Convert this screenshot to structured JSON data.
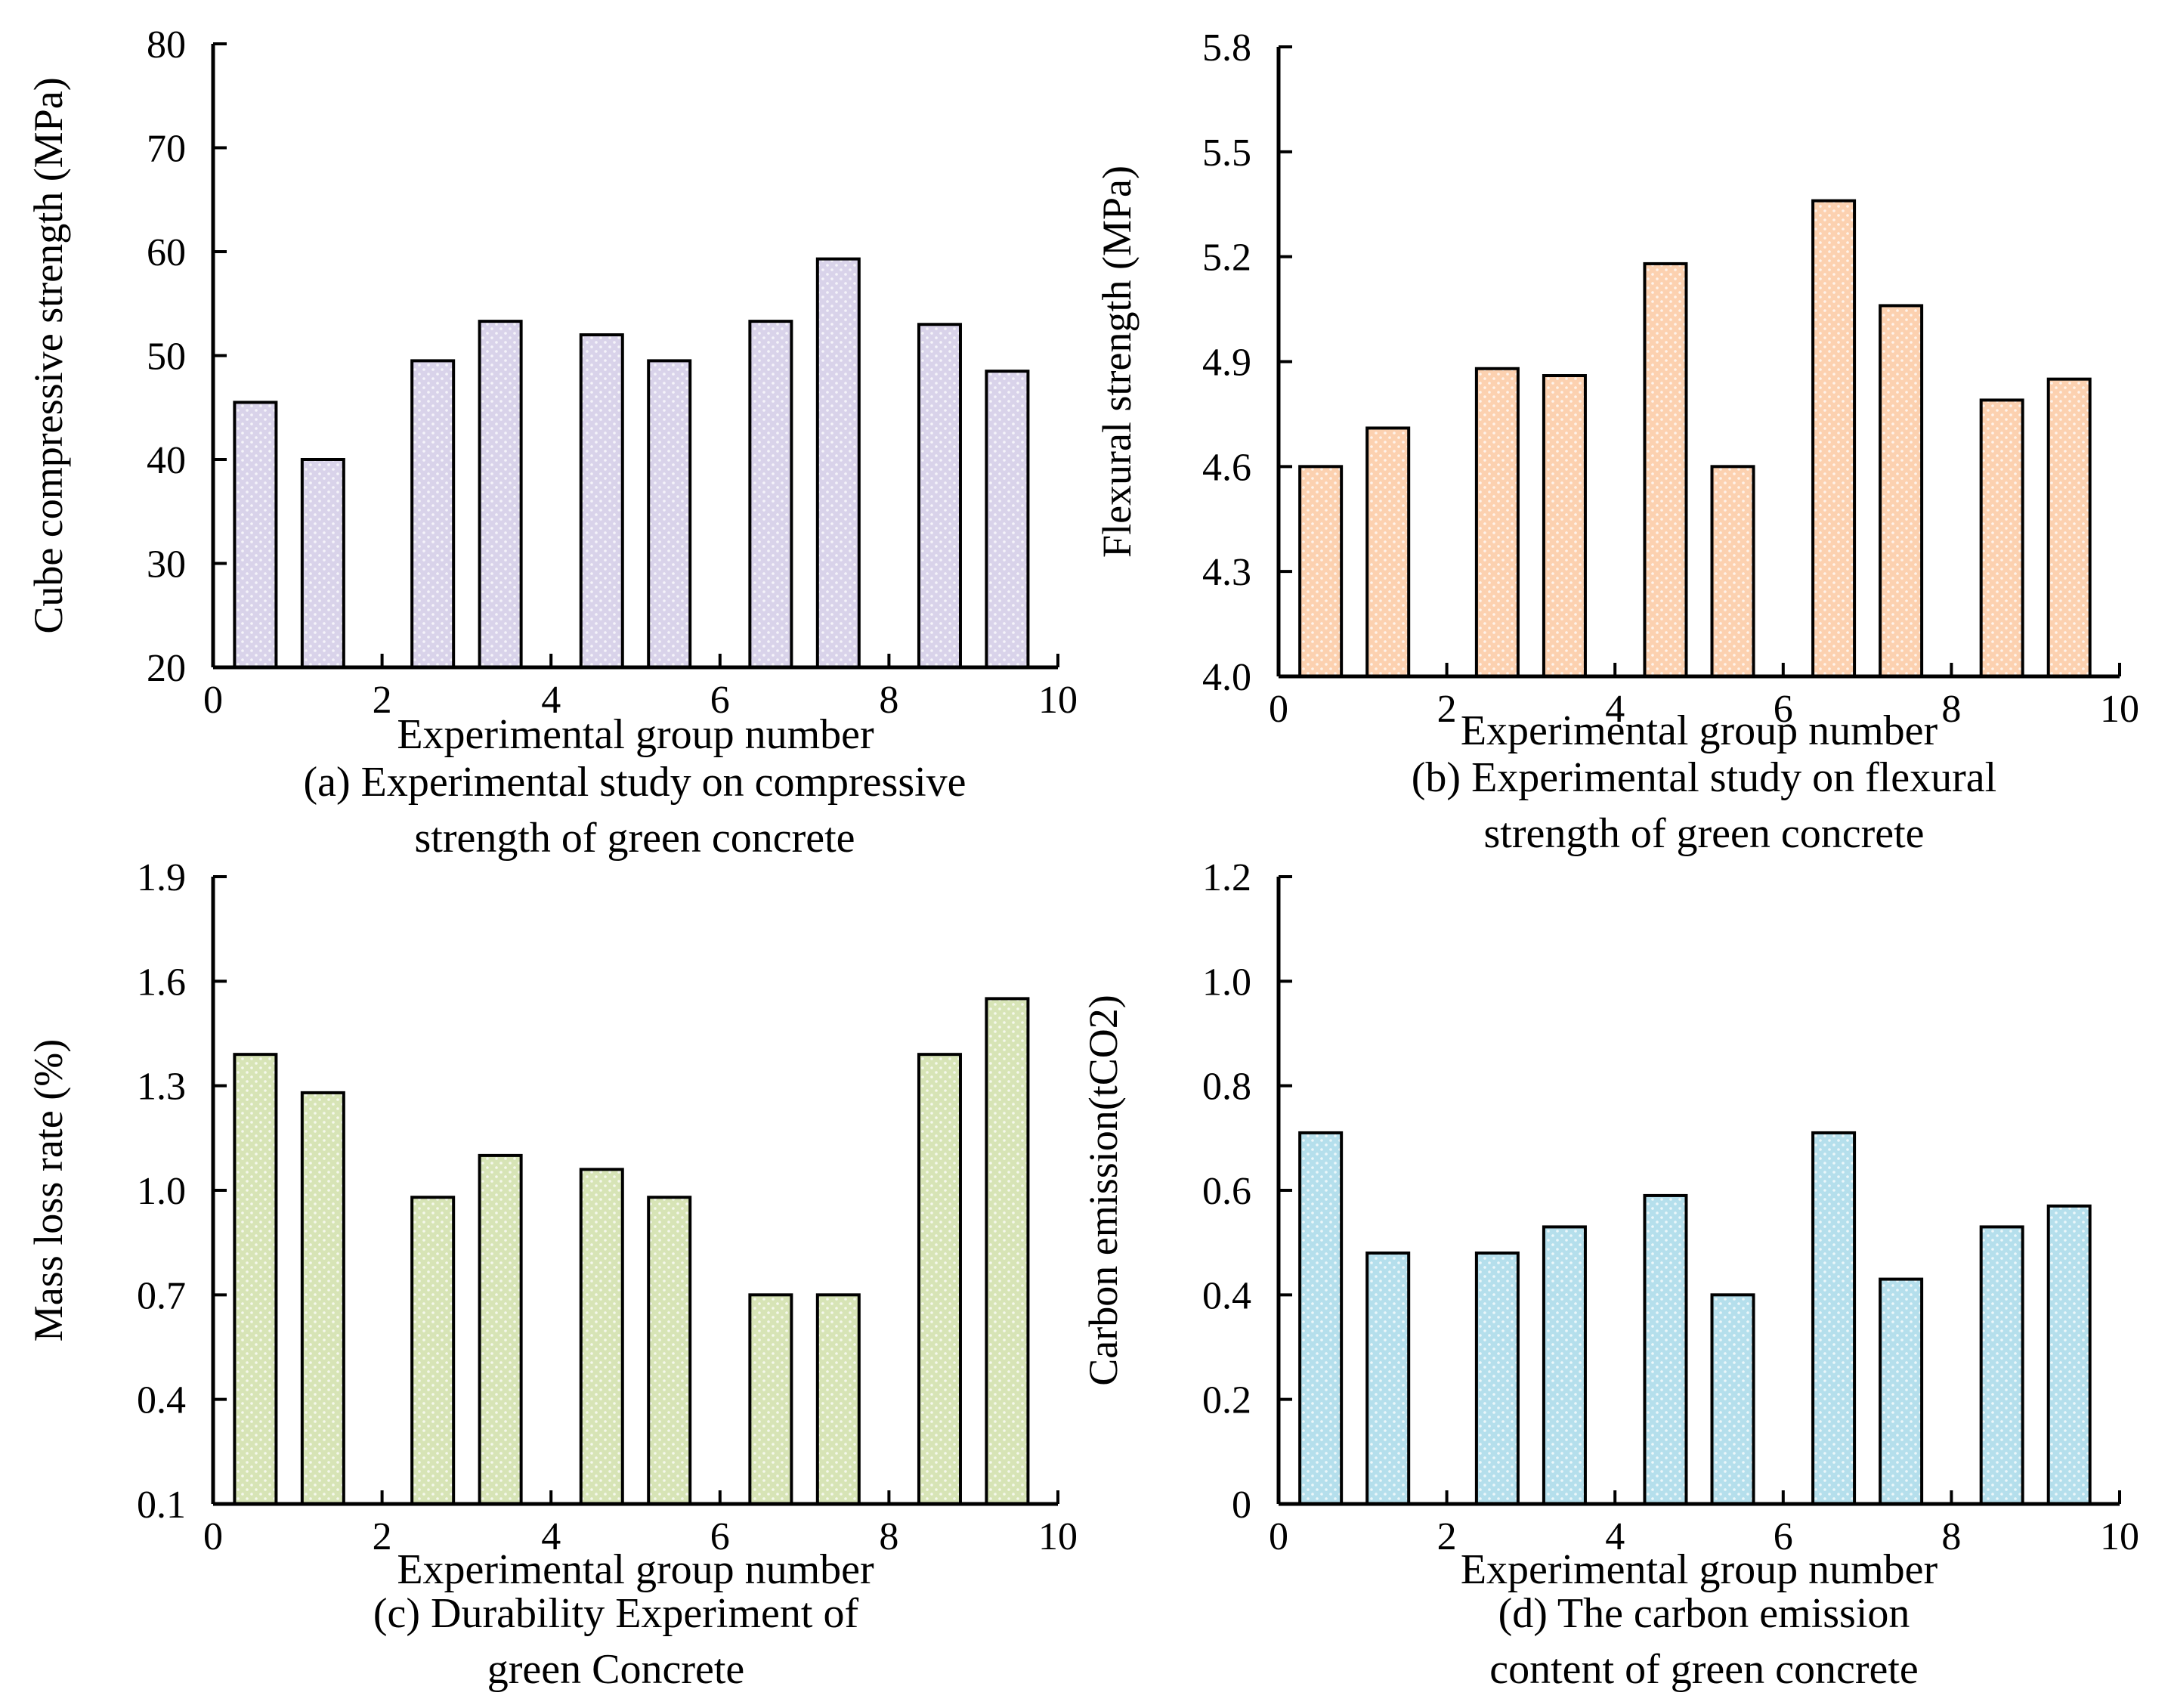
{
  "figure": {
    "name": "green-concrete-experiments"
  },
  "chart_data": [
    {
      "id": "a",
      "type": "bar",
      "title_line1": "(a) Experimental study on compressive",
      "title_line2": "strength of green concrete",
      "xlabel": "Experimental group number",
      "ylabel": "Cube compressive strength (MPa)",
      "xlim": [
        0,
        10
      ],
      "ylim": [
        20,
        80
      ],
      "xticks": [
        "0",
        "2",
        "4",
        "6",
        "8",
        "10"
      ],
      "yticks": [
        "20",
        "30",
        "40",
        "50",
        "60",
        "70",
        "80"
      ],
      "grid": false,
      "x": [
        0.5,
        1.3,
        2.6,
        3.4,
        4.6,
        5.4,
        6.6,
        7.4,
        8.6,
        9.4
      ],
      "values": [
        45.5,
        40.0,
        49.5,
        53.3,
        52.0,
        49.5,
        53.3,
        59.3,
        53.0,
        48.5
      ],
      "color": "#d9d3ea"
    },
    {
      "id": "b",
      "type": "bar",
      "title_line1": "(b) Experimental study on flexural",
      "title_line2": "strength of green concrete",
      "xlabel": "Experimental group number",
      "ylabel": "Flexural strength (MPa)",
      "xlim": [
        0,
        10
      ],
      "ylim": [
        4.0,
        5.8
      ],
      "xticks": [
        "0",
        "2",
        "4",
        "6",
        "8",
        "10"
      ],
      "yticks": [
        "4.0",
        "4.3",
        "4.6",
        "4.9",
        "5.2",
        "5.5",
        "5.8"
      ],
      "grid": false,
      "x": [
        0.5,
        1.3,
        2.6,
        3.4,
        4.6,
        5.4,
        6.6,
        7.4,
        8.6,
        9.4
      ],
      "values": [
        4.6,
        4.71,
        4.88,
        4.86,
        5.18,
        4.6,
        5.36,
        5.06,
        4.79,
        4.85
      ],
      "color": "#fcd1b0"
    },
    {
      "id": "c",
      "type": "bar",
      "title_line1": "(c) Durability Experiment of",
      "title_line2": "green Concrete",
      "xlabel": "Experimental group number",
      "ylabel": "Mass loss rate (%)",
      "xlim": [
        0,
        10
      ],
      "ylim": [
        0.1,
        1.9
      ],
      "xticks": [
        "0",
        "2",
        "4",
        "6",
        "8",
        "10"
      ],
      "yticks": [
        "0.1",
        "0.4",
        "0.7",
        "1.0",
        "1.3",
        "1.6",
        "1.9"
      ],
      "grid": false,
      "x": [
        0.5,
        1.3,
        2.6,
        3.4,
        4.6,
        5.4,
        6.6,
        7.4,
        8.6,
        9.4
      ],
      "values": [
        1.39,
        1.28,
        0.98,
        1.1,
        1.06,
        0.98,
        0.7,
        0.7,
        1.39,
        1.55
      ],
      "color": "#d7e4b6"
    },
    {
      "id": "d",
      "type": "bar",
      "title_line1": "(d) The carbon emission",
      "title_line2": "content of green concrete",
      "xlabel": "Experimental group number",
      "ylabel": "Carbon emission(tCO2)",
      "xlim": [
        0,
        10
      ],
      "ylim": [
        0,
        1.2
      ],
      "xticks": [
        "0",
        "2",
        "4",
        "6",
        "8",
        "10"
      ],
      "yticks": [
        "0",
        "0.2",
        "0.4",
        "0.6",
        "0.8",
        "1.0",
        "1.2"
      ],
      "grid": false,
      "x": [
        0.5,
        1.3,
        2.6,
        3.4,
        4.6,
        5.4,
        6.6,
        7.4,
        8.6,
        9.4
      ],
      "values": [
        0.71,
        0.48,
        0.48,
        0.53,
        0.59,
        0.4,
        0.71,
        0.43,
        0.53,
        0.57
      ],
      "color": "#b5dfec"
    }
  ]
}
